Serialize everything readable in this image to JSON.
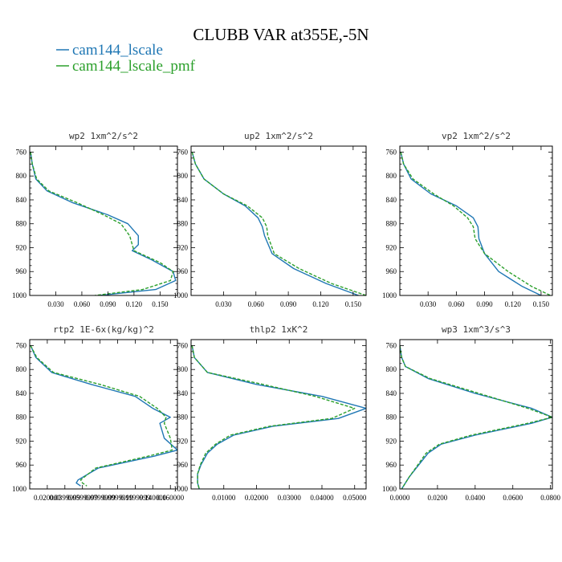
{
  "figure": {
    "title": "CLUBB VAR at355E,-5N",
    "legend": [
      {
        "name": "cam144_lscale",
        "color": "#1f77b4"
      },
      {
        "name": "cam144_lscale_pmf",
        "color": "#2ca02c"
      }
    ]
  },
  "chart_data": [
    {
      "type": "line",
      "title": "wp2  1xm^2/s^2",
      "xlim": [
        0.0,
        0.17
      ],
      "ylim": [
        1000,
        750
      ],
      "xticks": [
        0.03,
        0.06,
        0.09,
        0.12,
        0.15
      ],
      "xtick_labels": [
        "0.030",
        "0.060",
        "0.090",
        "0.120",
        "0.150"
      ],
      "yticks": [
        760,
        800,
        840,
        880,
        920,
        960,
        1000
      ],
      "series": [
        {
          "name": "cam144_lscale",
          "x": [
            0.001,
            0.003,
            0.007,
            0.02,
            0.05,
            0.09,
            0.113,
            0.125,
            0.125,
            0.118,
            0.14,
            0.165,
            0.168,
            0.145,
            0.08
          ],
          "y": [
            760,
            780,
            805,
            825,
            845,
            865,
            880,
            900,
            915,
            925,
            940,
            960,
            975,
            990,
            1000
          ]
        },
        {
          "name": "cam144_lscale_pmf",
          "x": [
            0.001,
            0.003,
            0.008,
            0.022,
            0.055,
            0.085,
            0.105,
            0.115,
            0.118,
            0.12,
            0.15,
            0.165,
            0.162,
            0.13,
            0.075
          ],
          "y": [
            760,
            780,
            805,
            825,
            845,
            865,
            880,
            900,
            915,
            925,
            945,
            960,
            975,
            990,
            1000
          ]
        }
      ]
    },
    {
      "type": "line",
      "title": "up2  1xm^2/s^2",
      "xlim": [
        0.0,
        0.162
      ],
      "ylim": [
        1000,
        750
      ],
      "xticks": [
        0.03,
        0.06,
        0.09,
        0.12,
        0.15
      ],
      "xtick_labels": [
        "0.030",
        "0.060",
        "0.090",
        "0.120",
        "0.150"
      ],
      "yticks": [
        760,
        800,
        840,
        880,
        920,
        960,
        1000
      ],
      "series": [
        {
          "name": "cam144_lscale",
          "x": [
            0.001,
            0.004,
            0.012,
            0.03,
            0.05,
            0.062,
            0.066,
            0.068,
            0.075,
            0.095,
            0.125,
            0.155
          ],
          "y": [
            760,
            780,
            805,
            830,
            850,
            870,
            885,
            900,
            930,
            955,
            980,
            1000
          ]
        },
        {
          "name": "cam144_lscale_pmf",
          "x": [
            0.001,
            0.004,
            0.012,
            0.03,
            0.052,
            0.066,
            0.07,
            0.071,
            0.077,
            0.1,
            0.13,
            0.162
          ],
          "y": [
            760,
            780,
            805,
            830,
            850,
            870,
            885,
            900,
            930,
            955,
            980,
            1000
          ]
        }
      ]
    },
    {
      "type": "line",
      "title": "vp2  1xm^2/s^2",
      "xlim": [
        0.0,
        0.162
      ],
      "ylim": [
        1000,
        750
      ],
      "xticks": [
        0.03,
        0.06,
        0.09,
        0.12,
        0.15
      ],
      "xtick_labels": [
        "0.030",
        "0.060",
        "0.090",
        "0.120",
        "0.150"
      ],
      "yticks": [
        760,
        800,
        840,
        880,
        920,
        960,
        1000
      ],
      "series": [
        {
          "name": "cam144_lscale",
          "x": [
            0.001,
            0.004,
            0.012,
            0.033,
            0.06,
            0.078,
            0.083,
            0.084,
            0.09,
            0.105,
            0.13,
            0.15
          ],
          "y": [
            760,
            780,
            805,
            830,
            850,
            870,
            885,
            905,
            930,
            960,
            985,
            1000
          ]
        },
        {
          "name": "cam144_lscale_pmf",
          "x": [
            0.001,
            0.004,
            0.014,
            0.036,
            0.057,
            0.072,
            0.078,
            0.08,
            0.09,
            0.115,
            0.14,
            0.16
          ],
          "y": [
            760,
            780,
            805,
            830,
            850,
            870,
            885,
            905,
            930,
            960,
            985,
            1000
          ]
        }
      ]
    },
    {
      "type": "line",
      "title": "rtp2  1E-6x(kg/kg)^2",
      "xlim": [
        0.0,
        0.168
      ],
      "ylim": [
        1000,
        750
      ],
      "xticks": [
        0.02,
        0.0399999,
        0.0599999,
        0.0799999,
        0.0999999,
        0.1199999,
        0.14,
        0.16
      ],
      "xtick_labels": [
        "0.020000",
        "0.0399999",
        "0.0599999",
        "0.0799999",
        "0.0999999",
        "0.1199999",
        "0.140000",
        "0.160000"
      ],
      "yticks": [
        760,
        800,
        840,
        880,
        920,
        960,
        1000
      ],
      "series": [
        {
          "name": "cam144_lscale",
          "x": [
            0.001,
            0.007,
            0.025,
            0.07,
            0.12,
            0.14,
            0.16,
            0.148,
            0.153,
            0.168,
            0.142,
            0.078,
            0.055,
            0.053,
            0.058
          ],
          "y": [
            760,
            780,
            805,
            825,
            845,
            865,
            880,
            890,
            915,
            935,
            945,
            965,
            985,
            990,
            995
          ]
        },
        {
          "name": "cam144_lscale_pmf",
          "x": [
            0.001,
            0.008,
            0.027,
            0.08,
            0.125,
            0.145,
            0.155,
            0.153,
            0.16,
            0.162,
            0.135,
            0.075,
            0.058,
            0.06,
            0.065
          ],
          "y": [
            760,
            780,
            805,
            825,
            845,
            865,
            880,
            890,
            915,
            935,
            945,
            965,
            985,
            990,
            995
          ]
        }
      ]
    },
    {
      "type": "line",
      "title": "thlp2  1xK^2",
      "xlim": [
        0.0,
        0.0535
      ],
      "ylim": [
        1000,
        750
      ],
      "xticks": [
        0.01,
        0.02,
        0.03,
        0.04,
        0.05
      ],
      "xtick_labels": [
        "0.01000",
        "0.02000",
        "0.03000",
        "0.04000",
        "0.05000"
      ],
      "yticks": [
        760,
        800,
        840,
        880,
        920,
        960,
        1000
      ],
      "series": [
        {
          "name": "cam144_lscale",
          "x": [
            0.0003,
            0.001,
            0.005,
            0.02,
            0.04,
            0.0535,
            0.045,
            0.025,
            0.013,
            0.008,
            0.005,
            0.003,
            0.002,
            0.002,
            0.0025
          ],
          "y": [
            760,
            780,
            805,
            825,
            845,
            865,
            882,
            895,
            910,
            925,
            940,
            960,
            975,
            990,
            1000
          ]
        },
        {
          "name": "cam144_lscale_pmf",
          "x": [
            0.0003,
            0.001,
            0.005,
            0.022,
            0.038,
            0.05,
            0.043,
            0.024,
            0.012,
            0.0075,
            0.0045,
            0.0028,
            0.002,
            0.002,
            0.0025
          ],
          "y": [
            760,
            780,
            805,
            825,
            845,
            865,
            882,
            895,
            910,
            925,
            940,
            960,
            975,
            990,
            1000
          ]
        }
      ]
    },
    {
      "type": "line",
      "title": "wp3  1xm^3/s^3",
      "xlim": [
        0.0,
        0.081
      ],
      "ylim": [
        1000,
        750
      ],
      "xticks": [
        0.0,
        0.02,
        0.04,
        0.06,
        0.08
      ],
      "xtick_labels": [
        "0.0000",
        "0.0200",
        "0.0400",
        "0.0600",
        "0.0800"
      ],
      "yticks": [
        760,
        800,
        840,
        880,
        920,
        960,
        1000
      ],
      "series": [
        {
          "name": "cam144_lscale",
          "x": [
            0.0,
            0.001,
            0.003,
            0.015,
            0.04,
            0.07,
            0.081,
            0.07,
            0.04,
            0.022,
            0.015,
            0.01,
            0.005,
            0.001
          ],
          "y": [
            760,
            780,
            795,
            815,
            840,
            865,
            880,
            890,
            910,
            925,
            940,
            960,
            980,
            1000
          ]
        },
        {
          "name": "cam144_lscale_pmf",
          "x": [
            0.0,
            0.001,
            0.003,
            0.016,
            0.042,
            0.068,
            0.081,
            0.068,
            0.038,
            0.021,
            0.014,
            0.0095,
            0.005,
            0.001
          ],
          "y": [
            760,
            780,
            795,
            815,
            840,
            865,
            880,
            890,
            910,
            925,
            940,
            960,
            980,
            1000
          ]
        }
      ]
    }
  ]
}
